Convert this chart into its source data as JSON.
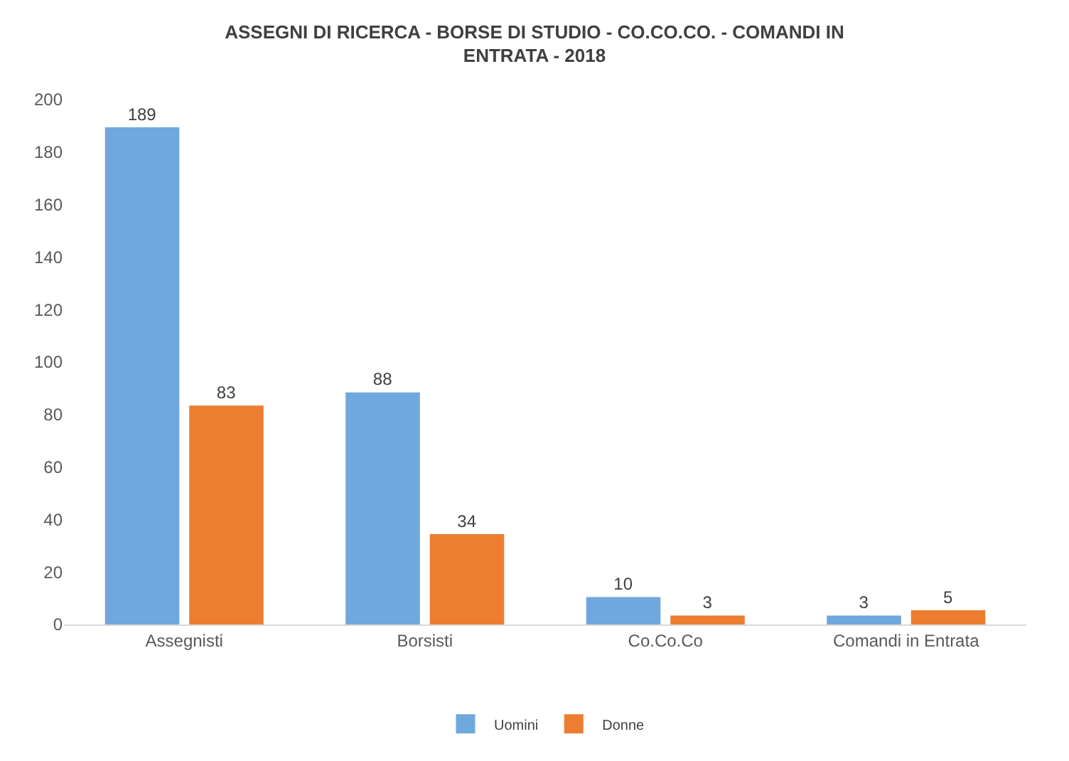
{
  "chart_data": {
    "type": "bar",
    "title": "ASSEGNI DI RICERCA - BORSE DI STUDIO - CO.CO.CO. - COMANDI IN ENTRATA - 2018",
    "categories": [
      "Assegnisti",
      "Borsisti",
      "Co.Co.Co",
      "Comandi in Entrata"
    ],
    "series": [
      {
        "name": "Uomini",
        "color": "#6fa8dc",
        "values": [
          189,
          88,
          10,
          3
        ]
      },
      {
        "name": "Donne",
        "color": "#ed7d31",
        "values": [
          83,
          34,
          3,
          5
        ]
      }
    ],
    "ylim": [
      0,
      200
    ],
    "yticks": [
      0,
      20,
      40,
      60,
      80,
      100,
      120,
      140,
      160,
      180,
      200
    ],
    "data_labels": true,
    "legend": "bottom",
    "grid": false
  }
}
